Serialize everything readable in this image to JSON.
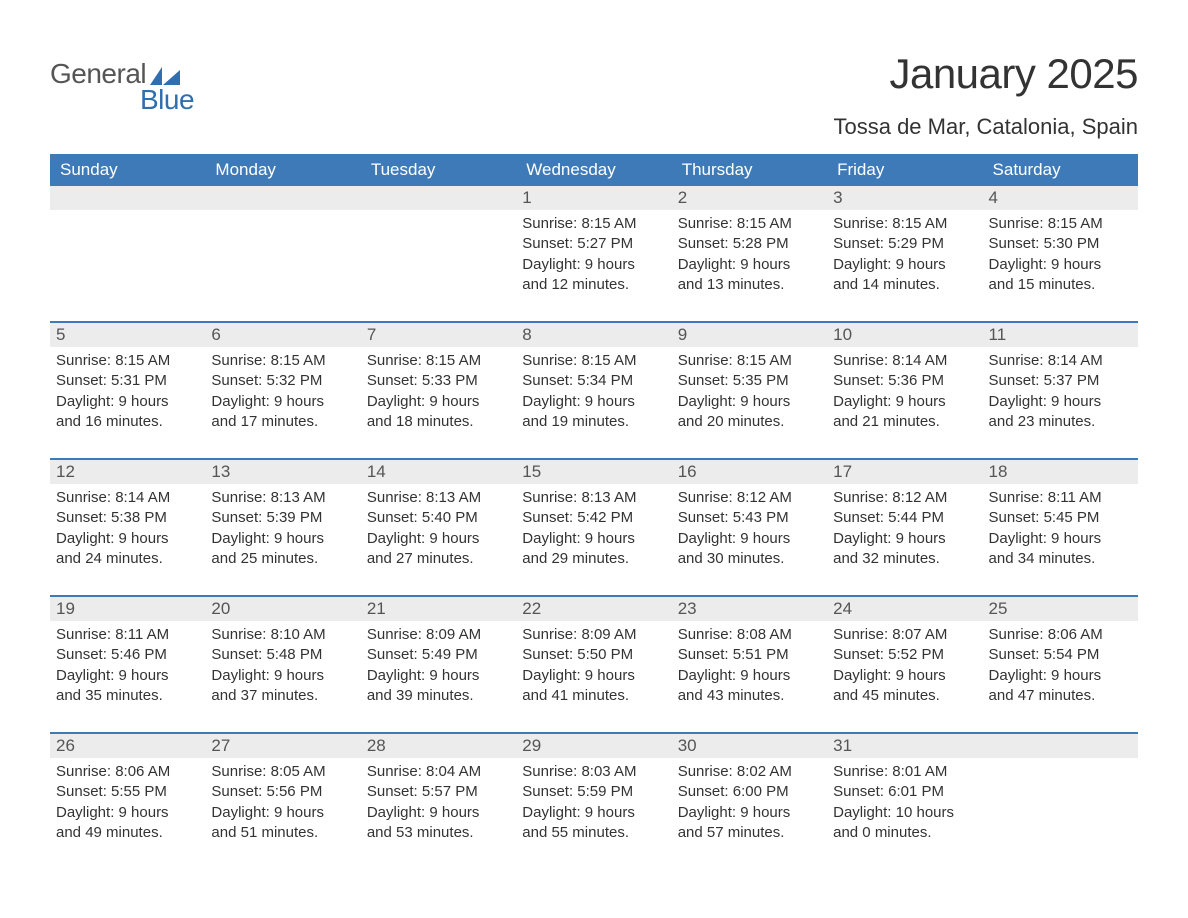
{
  "logo": {
    "text1": "General",
    "text2": "Blue",
    "brand_color": "#2f6fb0"
  },
  "title": "January 2025",
  "location": "Tossa de Mar, Catalonia, Spain",
  "colors": {
    "header_bg": "#3f7ab8",
    "header_text": "#ffffff",
    "daynum_bg": "#ececec",
    "week_border": "#3f7ab8",
    "body_text": "#333333",
    "page_bg": "#ffffff"
  },
  "dayNames": [
    "Sunday",
    "Monday",
    "Tuesday",
    "Wednesday",
    "Thursday",
    "Friday",
    "Saturday"
  ],
  "weeks": [
    [
      {
        "day": "",
        "sunrise": "",
        "sunset": "",
        "daylight1": "",
        "daylight2": ""
      },
      {
        "day": "",
        "sunrise": "",
        "sunset": "",
        "daylight1": "",
        "daylight2": ""
      },
      {
        "day": "",
        "sunrise": "",
        "sunset": "",
        "daylight1": "",
        "daylight2": ""
      },
      {
        "day": "1",
        "sunrise": "Sunrise: 8:15 AM",
        "sunset": "Sunset: 5:27 PM",
        "daylight1": "Daylight: 9 hours",
        "daylight2": "and 12 minutes."
      },
      {
        "day": "2",
        "sunrise": "Sunrise: 8:15 AM",
        "sunset": "Sunset: 5:28 PM",
        "daylight1": "Daylight: 9 hours",
        "daylight2": "and 13 minutes."
      },
      {
        "day": "3",
        "sunrise": "Sunrise: 8:15 AM",
        "sunset": "Sunset: 5:29 PM",
        "daylight1": "Daylight: 9 hours",
        "daylight2": "and 14 minutes."
      },
      {
        "day": "4",
        "sunrise": "Sunrise: 8:15 AM",
        "sunset": "Sunset: 5:30 PM",
        "daylight1": "Daylight: 9 hours",
        "daylight2": "and 15 minutes."
      }
    ],
    [
      {
        "day": "5",
        "sunrise": "Sunrise: 8:15 AM",
        "sunset": "Sunset: 5:31 PM",
        "daylight1": "Daylight: 9 hours",
        "daylight2": "and 16 minutes."
      },
      {
        "day": "6",
        "sunrise": "Sunrise: 8:15 AM",
        "sunset": "Sunset: 5:32 PM",
        "daylight1": "Daylight: 9 hours",
        "daylight2": "and 17 minutes."
      },
      {
        "day": "7",
        "sunrise": "Sunrise: 8:15 AM",
        "sunset": "Sunset: 5:33 PM",
        "daylight1": "Daylight: 9 hours",
        "daylight2": "and 18 minutes."
      },
      {
        "day": "8",
        "sunrise": "Sunrise: 8:15 AM",
        "sunset": "Sunset: 5:34 PM",
        "daylight1": "Daylight: 9 hours",
        "daylight2": "and 19 minutes."
      },
      {
        "day": "9",
        "sunrise": "Sunrise: 8:15 AM",
        "sunset": "Sunset: 5:35 PM",
        "daylight1": "Daylight: 9 hours",
        "daylight2": "and 20 minutes."
      },
      {
        "day": "10",
        "sunrise": "Sunrise: 8:14 AM",
        "sunset": "Sunset: 5:36 PM",
        "daylight1": "Daylight: 9 hours",
        "daylight2": "and 21 minutes."
      },
      {
        "day": "11",
        "sunrise": "Sunrise: 8:14 AM",
        "sunset": "Sunset: 5:37 PM",
        "daylight1": "Daylight: 9 hours",
        "daylight2": "and 23 minutes."
      }
    ],
    [
      {
        "day": "12",
        "sunrise": "Sunrise: 8:14 AM",
        "sunset": "Sunset: 5:38 PM",
        "daylight1": "Daylight: 9 hours",
        "daylight2": "and 24 minutes."
      },
      {
        "day": "13",
        "sunrise": "Sunrise: 8:13 AM",
        "sunset": "Sunset: 5:39 PM",
        "daylight1": "Daylight: 9 hours",
        "daylight2": "and 25 minutes."
      },
      {
        "day": "14",
        "sunrise": "Sunrise: 8:13 AM",
        "sunset": "Sunset: 5:40 PM",
        "daylight1": "Daylight: 9 hours",
        "daylight2": "and 27 minutes."
      },
      {
        "day": "15",
        "sunrise": "Sunrise: 8:13 AM",
        "sunset": "Sunset: 5:42 PM",
        "daylight1": "Daylight: 9 hours",
        "daylight2": "and 29 minutes."
      },
      {
        "day": "16",
        "sunrise": "Sunrise: 8:12 AM",
        "sunset": "Sunset: 5:43 PM",
        "daylight1": "Daylight: 9 hours",
        "daylight2": "and 30 minutes."
      },
      {
        "day": "17",
        "sunrise": "Sunrise: 8:12 AM",
        "sunset": "Sunset: 5:44 PM",
        "daylight1": "Daylight: 9 hours",
        "daylight2": "and 32 minutes."
      },
      {
        "day": "18",
        "sunrise": "Sunrise: 8:11 AM",
        "sunset": "Sunset: 5:45 PM",
        "daylight1": "Daylight: 9 hours",
        "daylight2": "and 34 minutes."
      }
    ],
    [
      {
        "day": "19",
        "sunrise": "Sunrise: 8:11 AM",
        "sunset": "Sunset: 5:46 PM",
        "daylight1": "Daylight: 9 hours",
        "daylight2": "and 35 minutes."
      },
      {
        "day": "20",
        "sunrise": "Sunrise: 8:10 AM",
        "sunset": "Sunset: 5:48 PM",
        "daylight1": "Daylight: 9 hours",
        "daylight2": "and 37 minutes."
      },
      {
        "day": "21",
        "sunrise": "Sunrise: 8:09 AM",
        "sunset": "Sunset: 5:49 PM",
        "daylight1": "Daylight: 9 hours",
        "daylight2": "and 39 minutes."
      },
      {
        "day": "22",
        "sunrise": "Sunrise: 8:09 AM",
        "sunset": "Sunset: 5:50 PM",
        "daylight1": "Daylight: 9 hours",
        "daylight2": "and 41 minutes."
      },
      {
        "day": "23",
        "sunrise": "Sunrise: 8:08 AM",
        "sunset": "Sunset: 5:51 PM",
        "daylight1": "Daylight: 9 hours",
        "daylight2": "and 43 minutes."
      },
      {
        "day": "24",
        "sunrise": "Sunrise: 8:07 AM",
        "sunset": "Sunset: 5:52 PM",
        "daylight1": "Daylight: 9 hours",
        "daylight2": "and 45 minutes."
      },
      {
        "day": "25",
        "sunrise": "Sunrise: 8:06 AM",
        "sunset": "Sunset: 5:54 PM",
        "daylight1": "Daylight: 9 hours",
        "daylight2": "and 47 minutes."
      }
    ],
    [
      {
        "day": "26",
        "sunrise": "Sunrise: 8:06 AM",
        "sunset": "Sunset: 5:55 PM",
        "daylight1": "Daylight: 9 hours",
        "daylight2": "and 49 minutes."
      },
      {
        "day": "27",
        "sunrise": "Sunrise: 8:05 AM",
        "sunset": "Sunset: 5:56 PM",
        "daylight1": "Daylight: 9 hours",
        "daylight2": "and 51 minutes."
      },
      {
        "day": "28",
        "sunrise": "Sunrise: 8:04 AM",
        "sunset": "Sunset: 5:57 PM",
        "daylight1": "Daylight: 9 hours",
        "daylight2": "and 53 minutes."
      },
      {
        "day": "29",
        "sunrise": "Sunrise: 8:03 AM",
        "sunset": "Sunset: 5:59 PM",
        "daylight1": "Daylight: 9 hours",
        "daylight2": "and 55 minutes."
      },
      {
        "day": "30",
        "sunrise": "Sunrise: 8:02 AM",
        "sunset": "Sunset: 6:00 PM",
        "daylight1": "Daylight: 9 hours",
        "daylight2": "and 57 minutes."
      },
      {
        "day": "31",
        "sunrise": "Sunrise: 8:01 AM",
        "sunset": "Sunset: 6:01 PM",
        "daylight1": "Daylight: 10 hours",
        "daylight2": "and 0 minutes."
      },
      {
        "day": "",
        "sunrise": "",
        "sunset": "",
        "daylight1": "",
        "daylight2": ""
      }
    ]
  ]
}
